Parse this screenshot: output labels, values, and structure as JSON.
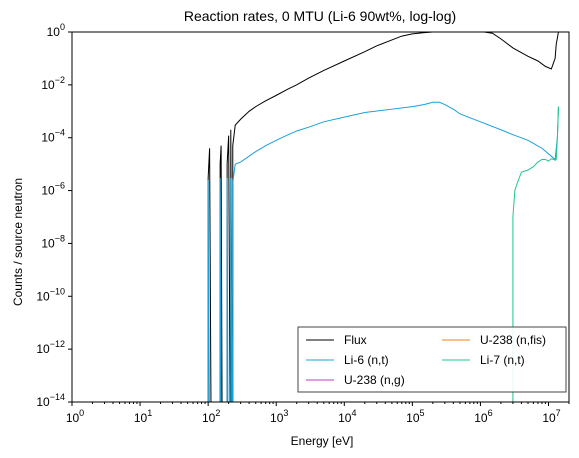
{
  "chart_data": {
    "type": "line",
    "title": "Reaction rates, 0 MTU (Li-6 90wt%, log-log)",
    "xlabel": "Energy [eV]",
    "ylabel": "Counts / source neutron",
    "xscale": "log",
    "yscale": "log",
    "xlim": [
      1,
      20000000
    ],
    "ylim": [
      1e-14,
      1
    ],
    "x_ticks": [
      {
        "value": 1,
        "base": "10",
        "exp": "0"
      },
      {
        "value": 10,
        "base": "10",
        "exp": "1"
      },
      {
        "value": 100,
        "base": "10",
        "exp": "2"
      },
      {
        "value": 1000,
        "base": "10",
        "exp": "3"
      },
      {
        "value": 10000,
        "base": "10",
        "exp": "4"
      },
      {
        "value": 100000,
        "base": "10",
        "exp": "5"
      },
      {
        "value": 1000000,
        "base": "10",
        "exp": "6"
      },
      {
        "value": 10000000,
        "base": "10",
        "exp": "7"
      }
    ],
    "y_ticks": [
      {
        "value": 1e-14,
        "base": "10",
        "exp": "−14"
      },
      {
        "value": 1e-12,
        "base": "10",
        "exp": "−12"
      },
      {
        "value": 1e-10,
        "base": "10",
        "exp": "−10"
      },
      {
        "value": 1e-08,
        "base": "10",
        "exp": "−8"
      },
      {
        "value": 1e-06,
        "base": "10",
        "exp": "−6"
      },
      {
        "value": 0.0001,
        "base": "10",
        "exp": "−4"
      },
      {
        "value": 0.01,
        "base": "10",
        "exp": "−2"
      },
      {
        "value": 1,
        "base": "10",
        "exp": "0"
      }
    ],
    "grid": false,
    "legend_position": "bottom-right",
    "legend_columns": 2,
    "series": [
      {
        "name": "Flux",
        "color": "#000000",
        "points": [
          [
            100,
            1e-14
          ],
          [
            100,
            3e-06
          ],
          [
            105,
            4e-05
          ],
          [
            110,
            1e-14
          ],
          [
            150,
            1e-14
          ],
          [
            150,
            1e-05
          ],
          [
            155,
            5e-05
          ],
          [
            160,
            1e-14
          ],
          [
            190,
            1e-14
          ],
          [
            190,
            1e-05
          ],
          [
            200,
            0.00012
          ],
          [
            210,
            1e-14
          ],
          [
            215,
            1e-14
          ],
          [
            215,
            0.0002
          ],
          [
            225,
            1e-14
          ],
          [
            230,
            1e-14
          ],
          [
            230,
            5e-05
          ],
          [
            250,
            0.0003
          ],
          [
            300,
            0.0005
          ],
          [
            400,
            0.001
          ],
          [
            500,
            0.0015
          ],
          [
            700,
            0.0025
          ],
          [
            1000,
            0.004
          ],
          [
            1500,
            0.007
          ],
          [
            2000,
            0.01
          ],
          [
            3000,
            0.018
          ],
          [
            5000,
            0.035
          ],
          [
            10000,
            0.08
          ],
          [
            20000,
            0.18
          ],
          [
            30000,
            0.3
          ],
          [
            50000,
            0.5
          ],
          [
            70000,
            0.7
          ],
          [
            100000,
            0.85
          ],
          [
            150000,
            0.95
          ],
          [
            200000,
            1.0
          ],
          [
            300000,
            1.1
          ],
          [
            500000,
            1.1
          ],
          [
            1000000,
            1.05
          ],
          [
            1500000,
            0.9
          ],
          [
            2000000,
            0.55
          ],
          [
            3000000,
            0.25
          ],
          [
            5000000,
            0.12
          ],
          [
            7000000,
            0.08
          ],
          [
            9000000,
            0.05
          ],
          [
            11000000,
            0.04
          ],
          [
            12500000,
            0.1
          ],
          [
            13000000,
            0.35
          ],
          [
            14000000,
            1
          ]
        ]
      },
      {
        "name": "Li-6 (n,t)",
        "color": "#1aa0d8",
        "points": [
          [
            100,
            1e-14
          ],
          [
            100,
            2.5e-06
          ],
          [
            104,
            1e-14
          ],
          [
            150,
            1e-14
          ],
          [
            150,
            3e-06
          ],
          [
            155,
            1e-14
          ],
          [
            190,
            1e-14
          ],
          [
            190,
            3e-06
          ],
          [
            195,
            1e-14
          ],
          [
            215,
            1e-14
          ],
          [
            215,
            3e-06
          ],
          [
            225,
            1e-14
          ],
          [
            230,
            1e-14
          ],
          [
            230,
            2e-06
          ],
          [
            250,
            1e-05
          ],
          [
            300,
            1.2e-05
          ],
          [
            400,
            2e-05
          ],
          [
            500,
            3e-05
          ],
          [
            700,
            5e-05
          ],
          [
            1000,
            8e-05
          ],
          [
            1500,
            0.00013
          ],
          [
            2000,
            0.00018
          ],
          [
            3000,
            0.00025
          ],
          [
            5000,
            0.0004
          ],
          [
            10000,
            0.0006
          ],
          [
            20000,
            0.0009
          ],
          [
            50000,
            0.0012
          ],
          [
            100000,
            0.0015
          ],
          [
            150000,
            0.0018
          ],
          [
            200000,
            0.0022
          ],
          [
            250000,
            0.0022
          ],
          [
            300000,
            0.0018
          ],
          [
            400000,
            0.0012
          ],
          [
            500000,
            0.0008
          ],
          [
            1000000,
            0.0004
          ],
          [
            2000000,
            0.0002
          ],
          [
            3000000,
            0.00013
          ],
          [
            5000000,
            8e-05
          ],
          [
            8000000,
            4e-05
          ],
          [
            11000000,
            2e-05
          ],
          [
            12500000,
            1.5e-05
          ],
          [
            13500000,
            0.0001
          ],
          [
            14000000,
            0.0015
          ]
        ]
      },
      {
        "name": "U-238 (n,g)",
        "color": "#c03cc0",
        "points": []
      },
      {
        "name": "U-238 (n,fis)",
        "color": "#f07f1e",
        "points": []
      },
      {
        "name": "Li-7 (n,t)",
        "color": "#1ec88c",
        "points": [
          [
            3000000,
            1e-14
          ],
          [
            3000000,
            1e-07
          ],
          [
            3200000,
            1e-06
          ],
          [
            3500000,
            2e-06
          ],
          [
            4000000,
            5e-06
          ],
          [
            5000000,
            6e-06
          ],
          [
            6000000,
            8e-06
          ],
          [
            7000000,
            1.2e-05
          ],
          [
            8000000,
            1.5e-05
          ],
          [
            9000000,
            1.5e-05
          ],
          [
            10000000,
            1.3e-05
          ],
          [
            11000000,
            1.6e-05
          ],
          [
            12000000,
            1.5e-05
          ],
          [
            12500000,
            1.4e-05
          ],
          [
            13000000,
            1.5e-05
          ],
          [
            13500000,
            0.0001
          ],
          [
            14000000,
            0.0015
          ]
        ]
      }
    ]
  }
}
